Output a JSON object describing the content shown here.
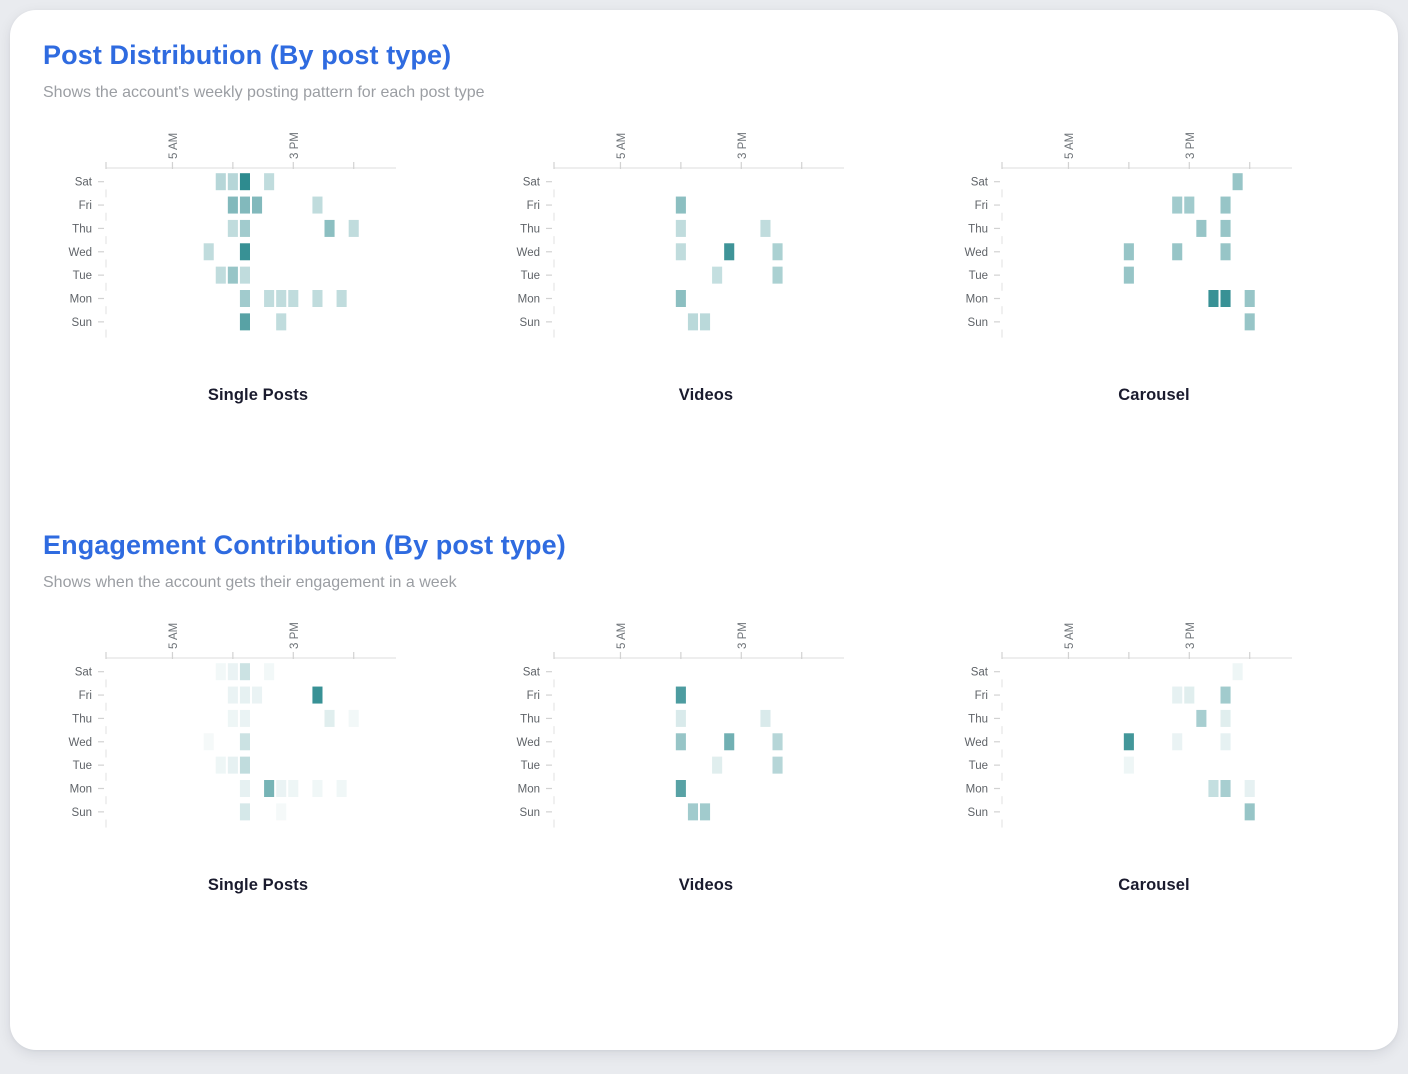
{
  "page": {
    "background_color": "#e9ebef",
    "card_color": "#ffffff",
    "accent_blue": "#2f6be0",
    "heat_color_high": "#2e8b8f",
    "heat_color_low": "#ffffff"
  },
  "sections": [
    {
      "title": "Post Distribution (By post type)",
      "subtitle": "Shows the account's weekly posting pattern for each post type",
      "chart_indices": [
        0,
        1,
        2
      ]
    },
    {
      "title": "Engagement Contribution (By post type)",
      "subtitle": "Shows when the account gets their engagement in a week",
      "chart_indices": [
        3,
        4,
        5
      ]
    }
  ],
  "chart_data": [
    {
      "type": "heatmap",
      "section": "Post Distribution (By post type)",
      "title": "Single Posts",
      "x_axis": {
        "unit": "hour of day",
        "range": [
          0,
          24
        ],
        "ticks": [
          {
            "hour": 5,
            "label": "5 AM"
          },
          {
            "hour": 10,
            "label": ""
          },
          {
            "hour": 15,
            "label": "3 PM"
          },
          {
            "hour": 20,
            "label": ""
          }
        ]
      },
      "y_axis": {
        "days_top_to_bottom": [
          "Sat",
          "Fri",
          "Thu",
          "Wed",
          "Tue",
          "Mon",
          "Sun"
        ]
      },
      "colorscale": {
        "low": "#ffffff",
        "high": "#2e8b8f"
      },
      "cells": [
        {
          "day": "Sat",
          "hour": 9,
          "value": 0.35
        },
        {
          "day": "Sat",
          "hour": 10,
          "value": 0.35
        },
        {
          "day": "Sat",
          "hour": 11,
          "value": 1.0
        },
        {
          "day": "Sat",
          "hour": 13,
          "value": 0.3
        },
        {
          "day": "Fri",
          "hour": 10,
          "value": 0.6
        },
        {
          "day": "Fri",
          "hour": 11,
          "value": 0.6
        },
        {
          "day": "Fri",
          "hour": 12,
          "value": 0.6
        },
        {
          "day": "Fri",
          "hour": 17,
          "value": 0.3
        },
        {
          "day": "Thu",
          "hour": 10,
          "value": 0.3
        },
        {
          "day": "Thu",
          "hour": 11,
          "value": 0.45
        },
        {
          "day": "Thu",
          "hour": 18,
          "value": 0.55
        },
        {
          "day": "Thu",
          "hour": 20,
          "value": 0.3
        },
        {
          "day": "Wed",
          "hour": 8,
          "value": 0.3
        },
        {
          "day": "Wed",
          "hour": 11,
          "value": 0.95
        },
        {
          "day": "Tue",
          "hour": 9,
          "value": 0.3
        },
        {
          "day": "Tue",
          "hour": 10,
          "value": 0.5
        },
        {
          "day": "Tue",
          "hour": 11,
          "value": 0.3
        },
        {
          "day": "Mon",
          "hour": 11,
          "value": 0.45
        },
        {
          "day": "Mon",
          "hour": 13,
          "value": 0.3
        },
        {
          "day": "Mon",
          "hour": 14,
          "value": 0.3
        },
        {
          "day": "Mon",
          "hour": 15,
          "value": 0.3
        },
        {
          "day": "Mon",
          "hour": 17,
          "value": 0.3
        },
        {
          "day": "Mon",
          "hour": 19,
          "value": 0.3
        },
        {
          "day": "Sun",
          "hour": 11,
          "value": 0.8
        },
        {
          "day": "Sun",
          "hour": 14,
          "value": 0.3
        }
      ]
    },
    {
      "type": "heatmap",
      "section": "Post Distribution (By post type)",
      "title": "Videos",
      "x_axis": {
        "unit": "hour of day",
        "range": [
          0,
          24
        ],
        "ticks": [
          {
            "hour": 5,
            "label": "5 AM"
          },
          {
            "hour": 10,
            "label": ""
          },
          {
            "hour": 15,
            "label": "3 PM"
          },
          {
            "hour": 20,
            "label": ""
          }
        ]
      },
      "y_axis": {
        "days_top_to_bottom": [
          "Sat",
          "Fri",
          "Thu",
          "Wed",
          "Tue",
          "Mon",
          "Sun"
        ]
      },
      "colorscale": {
        "low": "#ffffff",
        "high": "#2e8b8f"
      },
      "cells": [
        {
          "day": "Fri",
          "hour": 10,
          "value": 0.55
        },
        {
          "day": "Thu",
          "hour": 10,
          "value": 0.3
        },
        {
          "day": "Thu",
          "hour": 17,
          "value": 0.3
        },
        {
          "day": "Wed",
          "hour": 10,
          "value": 0.3
        },
        {
          "day": "Wed",
          "hour": 14,
          "value": 0.92
        },
        {
          "day": "Wed",
          "hour": 18,
          "value": 0.4
        },
        {
          "day": "Tue",
          "hour": 13,
          "value": 0.28
        },
        {
          "day": "Tue",
          "hour": 18,
          "value": 0.4
        },
        {
          "day": "Mon",
          "hour": 10,
          "value": 0.55
        },
        {
          "day": "Sun",
          "hour": 11,
          "value": 0.33
        },
        {
          "day": "Sun",
          "hour": 12,
          "value": 0.33
        }
      ]
    },
    {
      "type": "heatmap",
      "section": "Post Distribution (By post type)",
      "title": "Carousel",
      "x_axis": {
        "unit": "hour of day",
        "range": [
          0,
          24
        ],
        "ticks": [
          {
            "hour": 5,
            "label": "5 AM"
          },
          {
            "hour": 10,
            "label": ""
          },
          {
            "hour": 15,
            "label": "3 PM"
          },
          {
            "hour": 20,
            "label": ""
          }
        ]
      },
      "y_axis": {
        "days_top_to_bottom": [
          "Sat",
          "Fri",
          "Thu",
          "Wed",
          "Tue",
          "Mon",
          "Sun"
        ]
      },
      "colorscale": {
        "low": "#ffffff",
        "high": "#2e8b8f"
      },
      "cells": [
        {
          "day": "Sat",
          "hour": 19,
          "value": 0.5
        },
        {
          "day": "Fri",
          "hour": 14,
          "value": 0.45
        },
        {
          "day": "Fri",
          "hour": 15,
          "value": 0.45
        },
        {
          "day": "Fri",
          "hour": 18,
          "value": 0.5
        },
        {
          "day": "Thu",
          "hour": 16,
          "value": 0.5
        },
        {
          "day": "Thu",
          "hour": 18,
          "value": 0.5
        },
        {
          "day": "Wed",
          "hour": 10,
          "value": 0.5
        },
        {
          "day": "Wed",
          "hour": 14,
          "value": 0.5
        },
        {
          "day": "Wed",
          "hour": 18,
          "value": 0.5
        },
        {
          "day": "Tue",
          "hour": 10,
          "value": 0.5
        },
        {
          "day": "Mon",
          "hour": 17,
          "value": 0.95
        },
        {
          "day": "Mon",
          "hour": 18,
          "value": 0.95
        },
        {
          "day": "Mon",
          "hour": 20,
          "value": 0.5
        },
        {
          "day": "Sun",
          "hour": 20,
          "value": 0.5
        }
      ]
    },
    {
      "type": "heatmap",
      "section": "Engagement Contribution (By post type)",
      "title": "Single Posts",
      "x_axis": {
        "unit": "hour of day",
        "range": [
          0,
          24
        ],
        "ticks": [
          {
            "hour": 5,
            "label": "5 AM"
          },
          {
            "hour": 10,
            "label": ""
          },
          {
            "hour": 15,
            "label": "3 PM"
          },
          {
            "hour": 20,
            "label": ""
          }
        ]
      },
      "y_axis": {
        "days_top_to_bottom": [
          "Sat",
          "Fri",
          "Thu",
          "Wed",
          "Tue",
          "Mon",
          "Sun"
        ]
      },
      "colorscale": {
        "low": "#ffffff",
        "high": "#2e8b8f"
      },
      "cells": [
        {
          "day": "Sat",
          "hour": 9,
          "value": 0.06
        },
        {
          "day": "Sat",
          "hour": 10,
          "value": 0.1
        },
        {
          "day": "Sat",
          "hour": 11,
          "value": 0.25
        },
        {
          "day": "Sat",
          "hour": 13,
          "value": 0.06
        },
        {
          "day": "Fri",
          "hour": 10,
          "value": 0.1
        },
        {
          "day": "Fri",
          "hour": 11,
          "value": 0.12
        },
        {
          "day": "Fri",
          "hour": 12,
          "value": 0.1
        },
        {
          "day": "Fri",
          "hour": 17,
          "value": 0.95
        },
        {
          "day": "Thu",
          "hour": 10,
          "value": 0.08
        },
        {
          "day": "Thu",
          "hour": 11,
          "value": 0.1
        },
        {
          "day": "Thu",
          "hour": 18,
          "value": 0.15
        },
        {
          "day": "Thu",
          "hour": 20,
          "value": 0.06
        },
        {
          "day": "Wed",
          "hour": 8,
          "value": 0.05
        },
        {
          "day": "Wed",
          "hour": 11,
          "value": 0.25
        },
        {
          "day": "Tue",
          "hour": 9,
          "value": 0.08
        },
        {
          "day": "Tue",
          "hour": 10,
          "value": 0.12
        },
        {
          "day": "Tue",
          "hour": 11,
          "value": 0.3
        },
        {
          "day": "Mon",
          "hour": 11,
          "value": 0.12
        },
        {
          "day": "Mon",
          "hour": 13,
          "value": 0.65
        },
        {
          "day": "Mon",
          "hour": 14,
          "value": 0.1
        },
        {
          "day": "Mon",
          "hour": 15,
          "value": 0.08
        },
        {
          "day": "Mon",
          "hour": 17,
          "value": 0.07
        },
        {
          "day": "Mon",
          "hour": 19,
          "value": 0.07
        },
        {
          "day": "Sun",
          "hour": 11,
          "value": 0.2
        },
        {
          "day": "Sun",
          "hour": 14,
          "value": 0.05
        }
      ]
    },
    {
      "type": "heatmap",
      "section": "Engagement Contribution (By post type)",
      "title": "Videos",
      "x_axis": {
        "unit": "hour of day",
        "range": [
          0,
          24
        ],
        "ticks": [
          {
            "hour": 5,
            "label": "5 AM"
          },
          {
            "hour": 10,
            "label": ""
          },
          {
            "hour": 15,
            "label": "3 PM"
          },
          {
            "hour": 20,
            "label": ""
          }
        ]
      },
      "y_axis": {
        "days_top_to_bottom": [
          "Sat",
          "Fri",
          "Thu",
          "Wed",
          "Tue",
          "Mon",
          "Sun"
        ]
      },
      "colorscale": {
        "low": "#ffffff",
        "high": "#2e8b8f"
      },
      "cells": [
        {
          "day": "Fri",
          "hour": 10,
          "value": 0.85
        },
        {
          "day": "Thu",
          "hour": 10,
          "value": 0.18
        },
        {
          "day": "Thu",
          "hour": 17,
          "value": 0.18
        },
        {
          "day": "Wed",
          "hour": 10,
          "value": 0.5
        },
        {
          "day": "Wed",
          "hour": 14,
          "value": 0.68
        },
        {
          "day": "Wed",
          "hour": 18,
          "value": 0.35
        },
        {
          "day": "Tue",
          "hour": 13,
          "value": 0.15
        },
        {
          "day": "Tue",
          "hour": 18,
          "value": 0.35
        },
        {
          "day": "Mon",
          "hour": 10,
          "value": 0.8
        },
        {
          "day": "Sun",
          "hour": 11,
          "value": 0.45
        },
        {
          "day": "Sun",
          "hour": 12,
          "value": 0.45
        }
      ]
    },
    {
      "type": "heatmap",
      "section": "Engagement Contribution (By post type)",
      "title": "Carousel",
      "x_axis": {
        "unit": "hour of day",
        "range": [
          0,
          24
        ],
        "ticks": [
          {
            "hour": 5,
            "label": "5 AM"
          },
          {
            "hour": 10,
            "label": ""
          },
          {
            "hour": 15,
            "label": "3 PM"
          },
          {
            "hour": 20,
            "label": ""
          }
        ]
      },
      "y_axis": {
        "days_top_to_bottom": [
          "Sat",
          "Fri",
          "Thu",
          "Wed",
          "Tue",
          "Mon",
          "Sun"
        ]
      },
      "colorscale": {
        "low": "#ffffff",
        "high": "#2e8b8f"
      },
      "cells": [
        {
          "day": "Sat",
          "hour": 19,
          "value": 0.08
        },
        {
          "day": "Fri",
          "hour": 14,
          "value": 0.12
        },
        {
          "day": "Fri",
          "hour": 15,
          "value": 0.15
        },
        {
          "day": "Fri",
          "hour": 18,
          "value": 0.45
        },
        {
          "day": "Thu",
          "hour": 16,
          "value": 0.42
        },
        {
          "day": "Thu",
          "hour": 18,
          "value": 0.15
        },
        {
          "day": "Wed",
          "hour": 10,
          "value": 0.9
        },
        {
          "day": "Wed",
          "hour": 14,
          "value": 0.1
        },
        {
          "day": "Wed",
          "hour": 18,
          "value": 0.12
        },
        {
          "day": "Tue",
          "hour": 10,
          "value": 0.08
        },
        {
          "day": "Mon",
          "hour": 17,
          "value": 0.28
        },
        {
          "day": "Mon",
          "hour": 18,
          "value": 0.42
        },
        {
          "day": "Mon",
          "hour": 20,
          "value": 0.12
        },
        {
          "day": "Sun",
          "hour": 20,
          "value": 0.5
        }
      ]
    }
  ]
}
